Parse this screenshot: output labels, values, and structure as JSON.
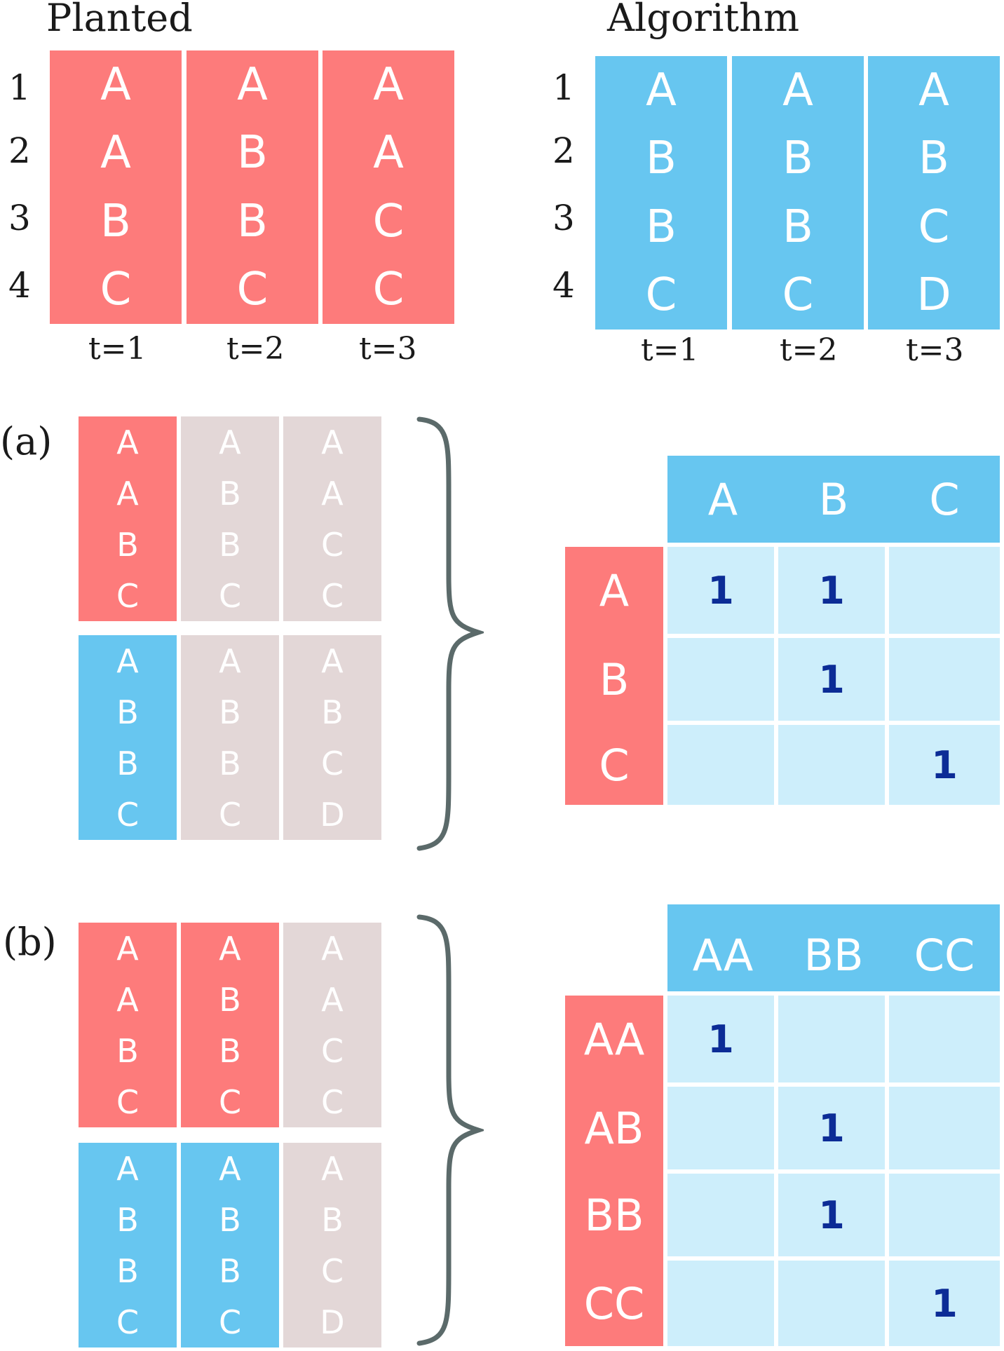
{
  "top": {
    "planted": {
      "title": "Planted",
      "row_numbers": [
        "1",
        "2",
        "3",
        "4"
      ],
      "columns": [
        {
          "label": "t=1",
          "values": [
            "A",
            "A",
            "B",
            "C"
          ]
        },
        {
          "label": "t=2",
          "values": [
            "A",
            "B",
            "B",
            "C"
          ]
        },
        {
          "label": "t=3",
          "values": [
            "A",
            "A",
            "C",
            "C"
          ]
        }
      ]
    },
    "algorithm": {
      "title": "Algorithm",
      "row_numbers": [
        "1",
        "2",
        "3",
        "4"
      ],
      "columns": [
        {
          "label": "t=1",
          "values": [
            "A",
            "B",
            "B",
            "C"
          ]
        },
        {
          "label": "t=2",
          "values": [
            "A",
            "B",
            "B",
            "C"
          ]
        },
        {
          "label": "t=3",
          "values": [
            "A",
            "B",
            "C",
            "D"
          ]
        }
      ]
    }
  },
  "panel_a": {
    "label": "(a)",
    "planted_columns": [
      [
        "A",
        "A",
        "B",
        "C"
      ],
      [
        "A",
        "B",
        "B",
        "C"
      ],
      [
        "A",
        "A",
        "C",
        "C"
      ]
    ],
    "algorithm_columns": [
      [
        "A",
        "B",
        "B",
        "C"
      ],
      [
        "A",
        "B",
        "B",
        "C"
      ],
      [
        "A",
        "B",
        "C",
        "D"
      ]
    ],
    "matrix": {
      "col_headers": [
        "A",
        "B",
        "C"
      ],
      "row_headers": [
        "A",
        "B",
        "C"
      ],
      "cells": [
        [
          "1",
          "1",
          ""
        ],
        [
          "",
          "1",
          ""
        ],
        [
          "",
          "",
          "1"
        ]
      ]
    }
  },
  "panel_b": {
    "label": "(b)",
    "planted_columns": [
      [
        "A",
        "A",
        "B",
        "C"
      ],
      [
        "A",
        "B",
        "B",
        "C"
      ],
      [
        "A",
        "A",
        "C",
        "C"
      ]
    ],
    "algorithm_columns": [
      [
        "A",
        "B",
        "B",
        "C"
      ],
      [
        "A",
        "B",
        "B",
        "C"
      ],
      [
        "A",
        "B",
        "C",
        "D"
      ]
    ],
    "matrix": {
      "col_headers": [
        "AA",
        "BB",
        "CC"
      ],
      "row_headers": [
        "AA",
        "AB",
        "BB",
        "CC"
      ],
      "cells": [
        [
          "1",
          "",
          ""
        ],
        [
          "",
          "1",
          ""
        ],
        [
          "",
          "1",
          ""
        ],
        [
          "",
          "",
          "1"
        ]
      ]
    }
  },
  "colors": {
    "planted_red": "#fd7b7b",
    "algorithm_blue": "#67c6f0",
    "inactive_grey": "#e3d7d7",
    "matrix_cell": "#cdeefb",
    "count_text": "#0c2c96",
    "brace": "#5b6a6a"
  }
}
